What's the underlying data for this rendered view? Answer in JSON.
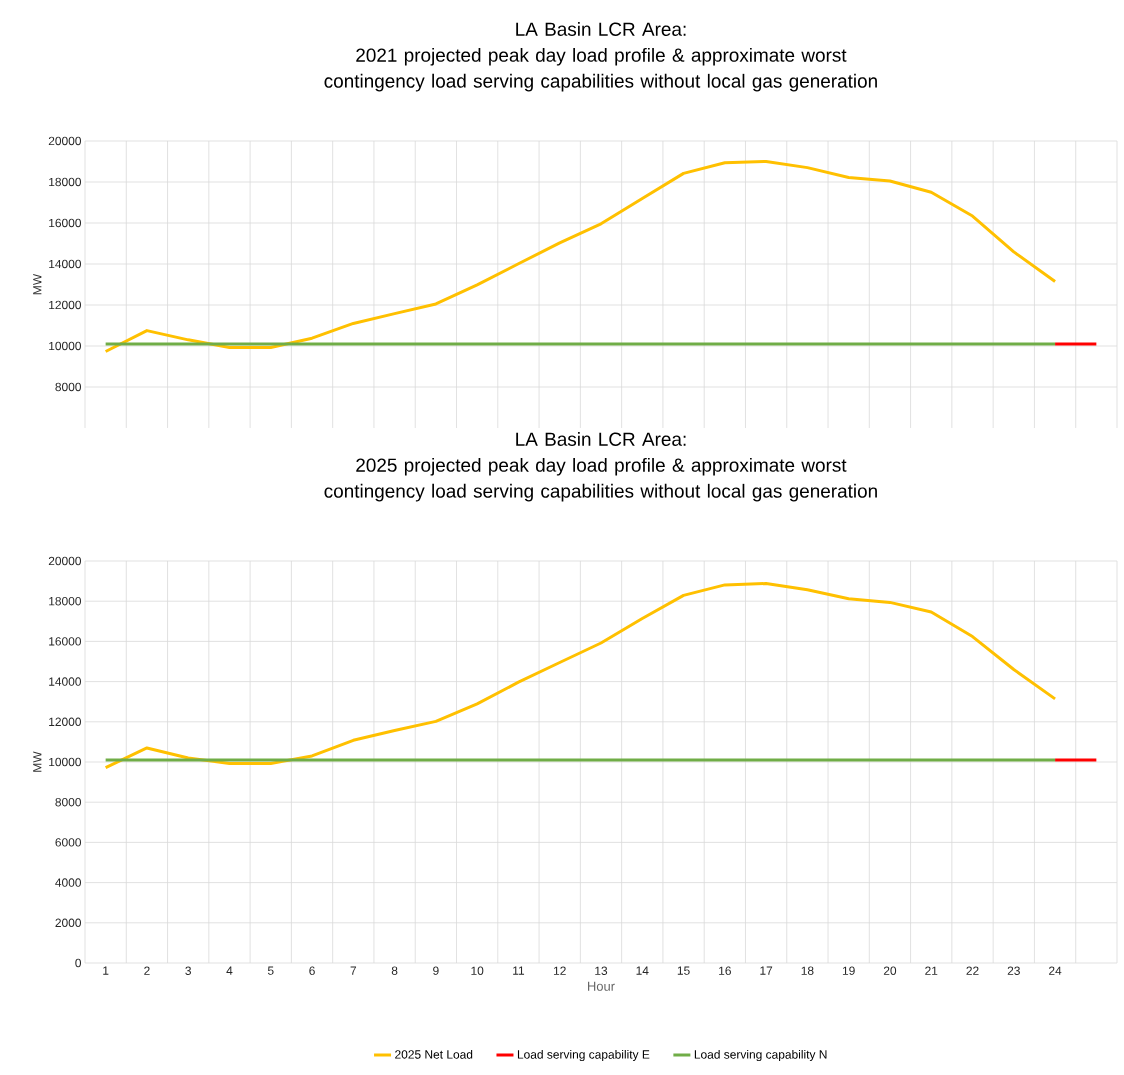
{
  "chart_data": [
    {
      "type": "line",
      "title": "LA Basin LCR Area:",
      "subtitle": "2021 projected peak day load profile & approximate worst contingency load serving capabilities without local gas generation",
      "ylabel": "MW",
      "categories": [
        null,
        null,
        null,
        null,
        null,
        null,
        null,
        null,
        null,
        null,
        null,
        null,
        null,
        null,
        null,
        null,
        null,
        null,
        null,
        null,
        null,
        null,
        null,
        null,
        null
      ],
      "ylim": [
        6000,
        20000
      ],
      "yticks": [
        8000,
        10000,
        12000,
        14000,
        16000,
        18000,
        20000
      ],
      "grid": true,
      "marker": "none",
      "line_style": "solid",
      "series": [
        {
          "color": "#ffc000",
          "values": [
            9730,
            10750,
            10300,
            9930,
            9930,
            10380,
            11100,
            11580,
            12050,
            12980,
            14010,
            15030,
            15960,
            17190,
            18420,
            18940,
            19000,
            18700,
            18220,
            18050,
            17500,
            16340,
            14590,
            13150,
            null
          ]
        },
        {
          "color": "#ff0000",
          "values": [
            null,
            null,
            null,
            null,
            null,
            null,
            null,
            null,
            null,
            null,
            null,
            null,
            null,
            null,
            null,
            null,
            null,
            null,
            null,
            null,
            null,
            null,
            null,
            10100,
            10100
          ]
        },
        {
          "color": "#70ad47",
          "values": [
            10100,
            10100,
            10100,
            10100,
            10100,
            10100,
            10100,
            10100,
            10100,
            10100,
            10100,
            10100,
            10100,
            10100,
            10100,
            10100,
            10100,
            10100,
            10100,
            10100,
            10100,
            10100,
            10100,
            10100,
            null
          ]
        }
      ]
    },
    {
      "type": "line",
      "title": "LA Basin LCR Area:",
      "subtitle": "2025 projected peak day load profile & approximate worst contingency load serving capabilities without local gas generation",
      "ylabel": "MW",
      "xlabel": "Hour",
      "categories": [
        "1",
        "2",
        "3",
        "4",
        "5",
        "6",
        "7",
        "8",
        "9",
        "10",
        "11",
        "12",
        "13",
        "14",
        "15",
        "16",
        "17",
        "18",
        "19",
        "20",
        "21",
        "22",
        "23",
        "24",
        null
      ],
      "ylim": [
        0,
        20000
      ],
      "yticks": [
        0,
        2000,
        4000,
        6000,
        8000,
        10000,
        12000,
        14000,
        16000,
        18000,
        20000
      ],
      "grid": true,
      "legend": "bottom",
      "marker": "none",
      "line_style": "solid",
      "series": [
        {
          "name": "2025 Net Load",
          "color": "#ffc000",
          "values": [
            9720,
            10700,
            10200,
            9930,
            9930,
            10300,
            11080,
            11570,
            12020,
            12890,
            13970,
            14950,
            15920,
            17140,
            18290,
            18810,
            18880,
            18570,
            18120,
            17940,
            17460,
            16240,
            14600,
            13140,
            null
          ]
        },
        {
          "name": "Load serving capability E",
          "color": "#ff0000",
          "values": [
            null,
            null,
            null,
            null,
            null,
            null,
            null,
            null,
            null,
            null,
            null,
            null,
            null,
            null,
            null,
            null,
            null,
            null,
            null,
            null,
            null,
            null,
            null,
            10100,
            10100
          ]
        },
        {
          "name": "Load serving capability N",
          "color": "#70ad47",
          "values": [
            10100,
            10100,
            10100,
            10100,
            10100,
            10100,
            10100,
            10100,
            10100,
            10100,
            10100,
            10100,
            10100,
            10100,
            10100,
            10100,
            10100,
            10100,
            10100,
            10100,
            10100,
            10100,
            10100,
            10100,
            null
          ]
        }
      ]
    }
  ]
}
